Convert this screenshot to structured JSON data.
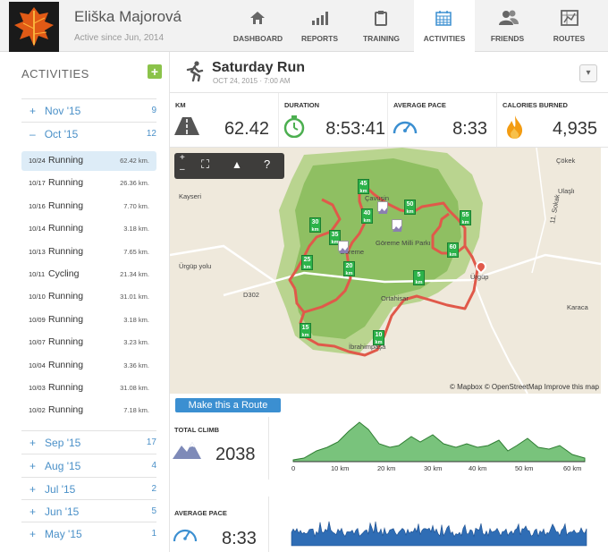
{
  "user": {
    "name": "Eliška Majorová",
    "since": "Active since Jun, 2014"
  },
  "nav": [
    {
      "label": "DASHBOARD",
      "icon": "home-icon",
      "active": false
    },
    {
      "label": "REPORTS",
      "icon": "bar-chart-icon",
      "active": false
    },
    {
      "label": "TRAINING",
      "icon": "clipboard-icon",
      "active": false
    },
    {
      "label": "ACTIVITIES",
      "icon": "calendar-icon",
      "active": true
    },
    {
      "label": "FRIENDS",
      "icon": "friends-icon",
      "active": false
    },
    {
      "label": "ROUTES",
      "icon": "map-icon",
      "active": false
    }
  ],
  "sidebar": {
    "title": "ACTIVITIES",
    "add": "+",
    "months_top": [
      {
        "label": "Nov '15",
        "count": "9",
        "sign": "+"
      },
      {
        "label": "Oct '15",
        "count": "12",
        "sign": "–"
      }
    ],
    "activities": [
      {
        "date": "10/24",
        "name": "Running",
        "dist": "62.42 km.",
        "selected": true
      },
      {
        "date": "10/17",
        "name": "Running",
        "dist": "26.36 km.",
        "selected": false
      },
      {
        "date": "10/16",
        "name": "Running",
        "dist": "7.70 km.",
        "selected": false
      },
      {
        "date": "10/14",
        "name": "Running",
        "dist": "3.18 km.",
        "selected": false
      },
      {
        "date": "10/13",
        "name": "Running",
        "dist": "7.65 km.",
        "selected": false
      },
      {
        "date": "10/11",
        "name": "Cycling",
        "dist": "21.34 km.",
        "selected": false
      },
      {
        "date": "10/10",
        "name": "Running",
        "dist": "31.01 km.",
        "selected": false
      },
      {
        "date": "10/09",
        "name": "Running",
        "dist": "3.18 km.",
        "selected": false
      },
      {
        "date": "10/07",
        "name": "Running",
        "dist": "3.23 km.",
        "selected": false
      },
      {
        "date": "10/04",
        "name": "Running",
        "dist": "3.36 km.",
        "selected": false
      },
      {
        "date": "10/03",
        "name": "Running",
        "dist": "31.08 km.",
        "selected": false
      },
      {
        "date": "10/02",
        "name": "Running",
        "dist": "7.18 km.",
        "selected": false
      }
    ],
    "months_bottom": [
      {
        "label": "Sep '15",
        "count": "17",
        "sign": "+"
      },
      {
        "label": "Aug '15",
        "count": "4",
        "sign": "+"
      },
      {
        "label": "Jul '15",
        "count": "2",
        "sign": "+"
      },
      {
        "label": "Jun '15",
        "count": "5",
        "sign": "+"
      },
      {
        "label": "May '15",
        "count": "1",
        "sign": "+"
      }
    ]
  },
  "activity": {
    "title": "Saturday Run",
    "date": "OCT 24, 2015 · 7:00 AM",
    "toggle": "▾"
  },
  "stats": [
    {
      "label": "KM",
      "value": "62.42",
      "icon": "road-icon"
    },
    {
      "label": "DURATION",
      "value": "8:53:41",
      "icon": "stopwatch-icon"
    },
    {
      "label": "AVERAGE PACE",
      "value": "8:33",
      "icon": "speedometer-icon"
    },
    {
      "label": "CALORIES BURNED",
      "value": "4,935",
      "icon": "flame-icon"
    }
  ],
  "map": {
    "controls": [
      "+",
      "–",
      "⛶",
      "▲",
      "?"
    ],
    "km_markers": [
      "45",
      "50",
      "55",
      "60",
      "40",
      "35",
      "30",
      "25",
      "20",
      "5",
      "15",
      "10"
    ],
    "places": [
      "Çökek",
      "Ulaşlı",
      "Çavuşin",
      "Göreme Milli Parkı",
      "Göreme",
      "Ortahisar",
      "İbrahimpaşa",
      "Ürgüp",
      "Karaca",
      "Kayseri",
      "Ürgüp yolu",
      "D302",
      "11. Sokak"
    ],
    "credit": "© Mapbox © OpenStreetMap Improve this map"
  },
  "route_button": "Make this a Route",
  "climb": {
    "label": "TOTAL CLIMB",
    "value": "2038",
    "ticks": [
      "0",
      "10 km",
      "20 km",
      "30 km",
      "40 km",
      "50 km",
      "60 km"
    ]
  },
  "pace": {
    "label": "AVERAGE PACE",
    "value": "8:33"
  },
  "colors": {
    "accent": "#3b8fd1",
    "green": "#4caf50",
    "route": "#e0594a",
    "add": "#8bc34a"
  }
}
